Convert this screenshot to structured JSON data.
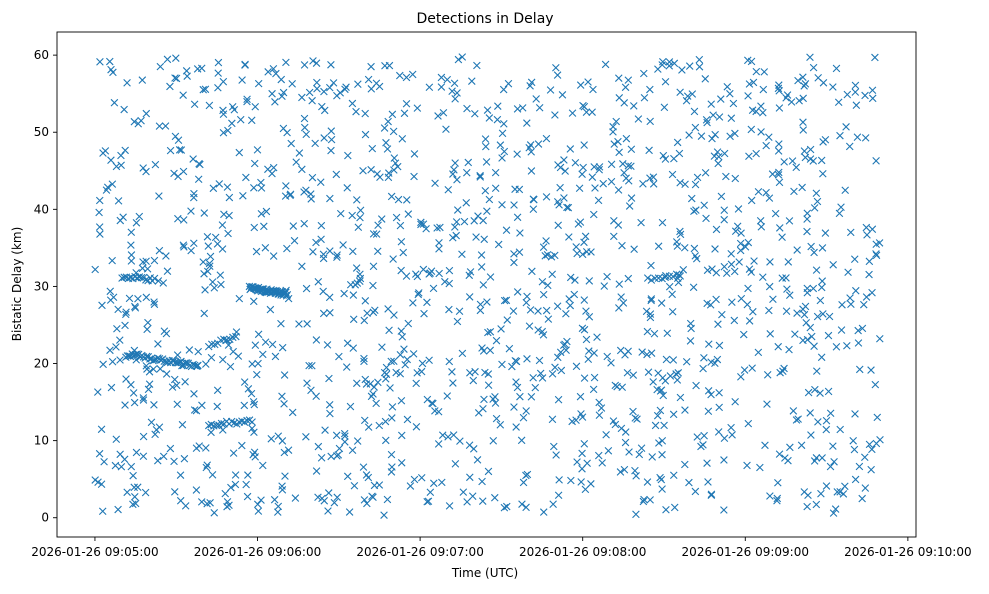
{
  "chart_data": {
    "type": "scatter",
    "title": "Detections in Delay",
    "xlabel": "Time (UTC)",
    "ylabel": "Bistatic Delay (km)",
    "x_is_time": true,
    "x_range": [
      "2026-01-26 09:04:46",
      "2026-01-26 09:10:03"
    ],
    "x_ticks": [
      "2026-01-26 09:05:00",
      "2026-01-26 09:06:00",
      "2026-01-26 09:07:00",
      "2026-01-26 09:08:00",
      "2026-01-26 09:09:00",
      "2026-01-26 09:10:00"
    ],
    "ylim": [
      -2.5,
      63
    ],
    "y_ticks": [
      0,
      10,
      20,
      30,
      40,
      50,
      60
    ],
    "marker": "x",
    "color": "#1f77b4",
    "grid": false,
    "data_extent": {
      "x": [
        "2026-01-26 09:05:00",
        "2026-01-26 09:09:50"
      ],
      "y": [
        0.3,
        60.0
      ]
    },
    "background_points_estimated": 1450,
    "tracks": [
      {
        "x": [
          "2026-01-26 09:05:10",
          "2026-01-26 09:05:22"
        ],
        "y": [
          31.3,
          30.8
        ],
        "points": 16
      },
      {
        "x": [
          "2026-01-26 09:05:12",
          "2026-01-26 09:05:38"
        ],
        "y": [
          21.2,
          19.6
        ],
        "points": 45
      },
      {
        "x": [
          "2026-01-26 09:05:42",
          "2026-01-26 09:05:52"
        ],
        "y": [
          22.2,
          23.6
        ],
        "points": 10
      },
      {
        "x": [
          "2026-01-26 09:05:42",
          "2026-01-26 09:05:58"
        ],
        "y": [
          12.0,
          12.6
        ],
        "points": 18
      },
      {
        "x": [
          "2026-01-26 09:05:57",
          "2026-01-26 09:06:11"
        ],
        "y": [
          29.8,
          29.0
        ],
        "points": 55
      },
      {
        "x": [
          "2026-01-26 09:08:24",
          "2026-01-26 09:08:36"
        ],
        "y": [
          31.0,
          31.4
        ],
        "points": 10
      }
    ]
  }
}
